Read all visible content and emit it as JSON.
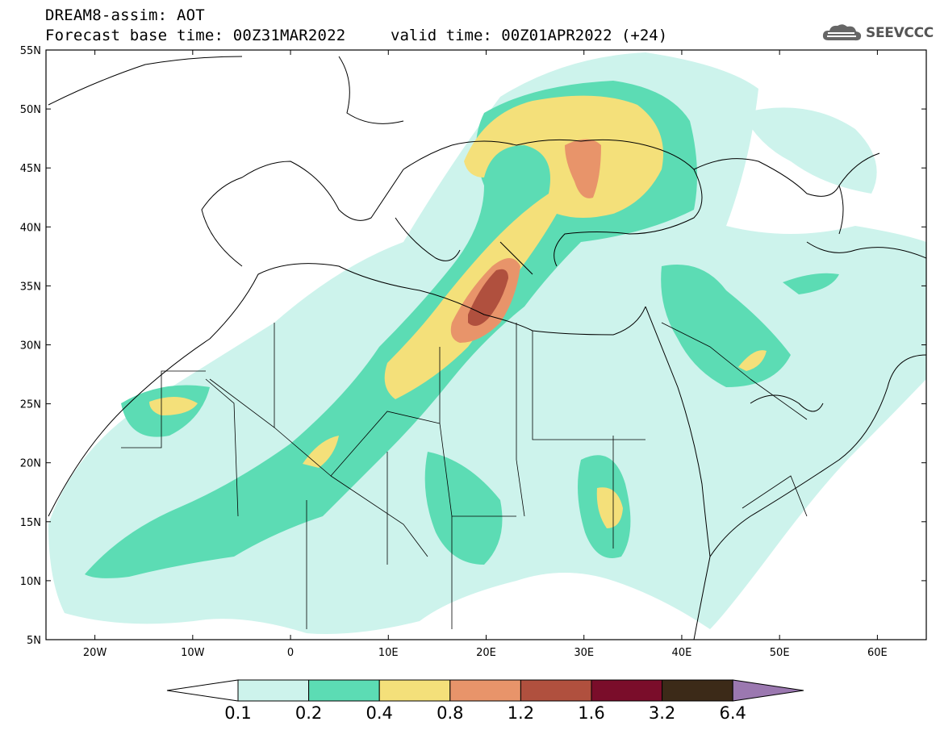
{
  "title": {
    "line1": "DREAM8-assim: AOT",
    "line2": "Forecast base time: 00Z31MAR2022",
    "valid": "valid time: 00Z01APR2022 (+24)"
  },
  "logo": {
    "text": "SEEVCCC",
    "icon": "cloud-icon"
  },
  "map": {
    "lon_range": [
      -25,
      65
    ],
    "lat_range": [
      5,
      55
    ],
    "lat_labels": [
      "55N",
      "50N",
      "45N",
      "40N",
      "35N",
      "30N",
      "25N",
      "20N",
      "15N",
      "10N",
      "5N"
    ],
    "lon_labels": [
      "20W",
      "10W",
      "0",
      "10E",
      "20E",
      "30E",
      "40E",
      "50E",
      "60E"
    ]
  },
  "colorbar": {
    "labels": [
      "0.1",
      "0.2",
      "0.4",
      "0.8",
      "1.2",
      "1.6",
      "3.2",
      "6.4"
    ],
    "colors": [
      "#cdf3ec",
      "#5cdcb4",
      "#f4e07a",
      "#e8946a",
      "#b0503e",
      "#7a0d2a",
      "#3c2a18"
    ],
    "over_color": "#9b78b0",
    "under_color": "#ffffff"
  }
}
